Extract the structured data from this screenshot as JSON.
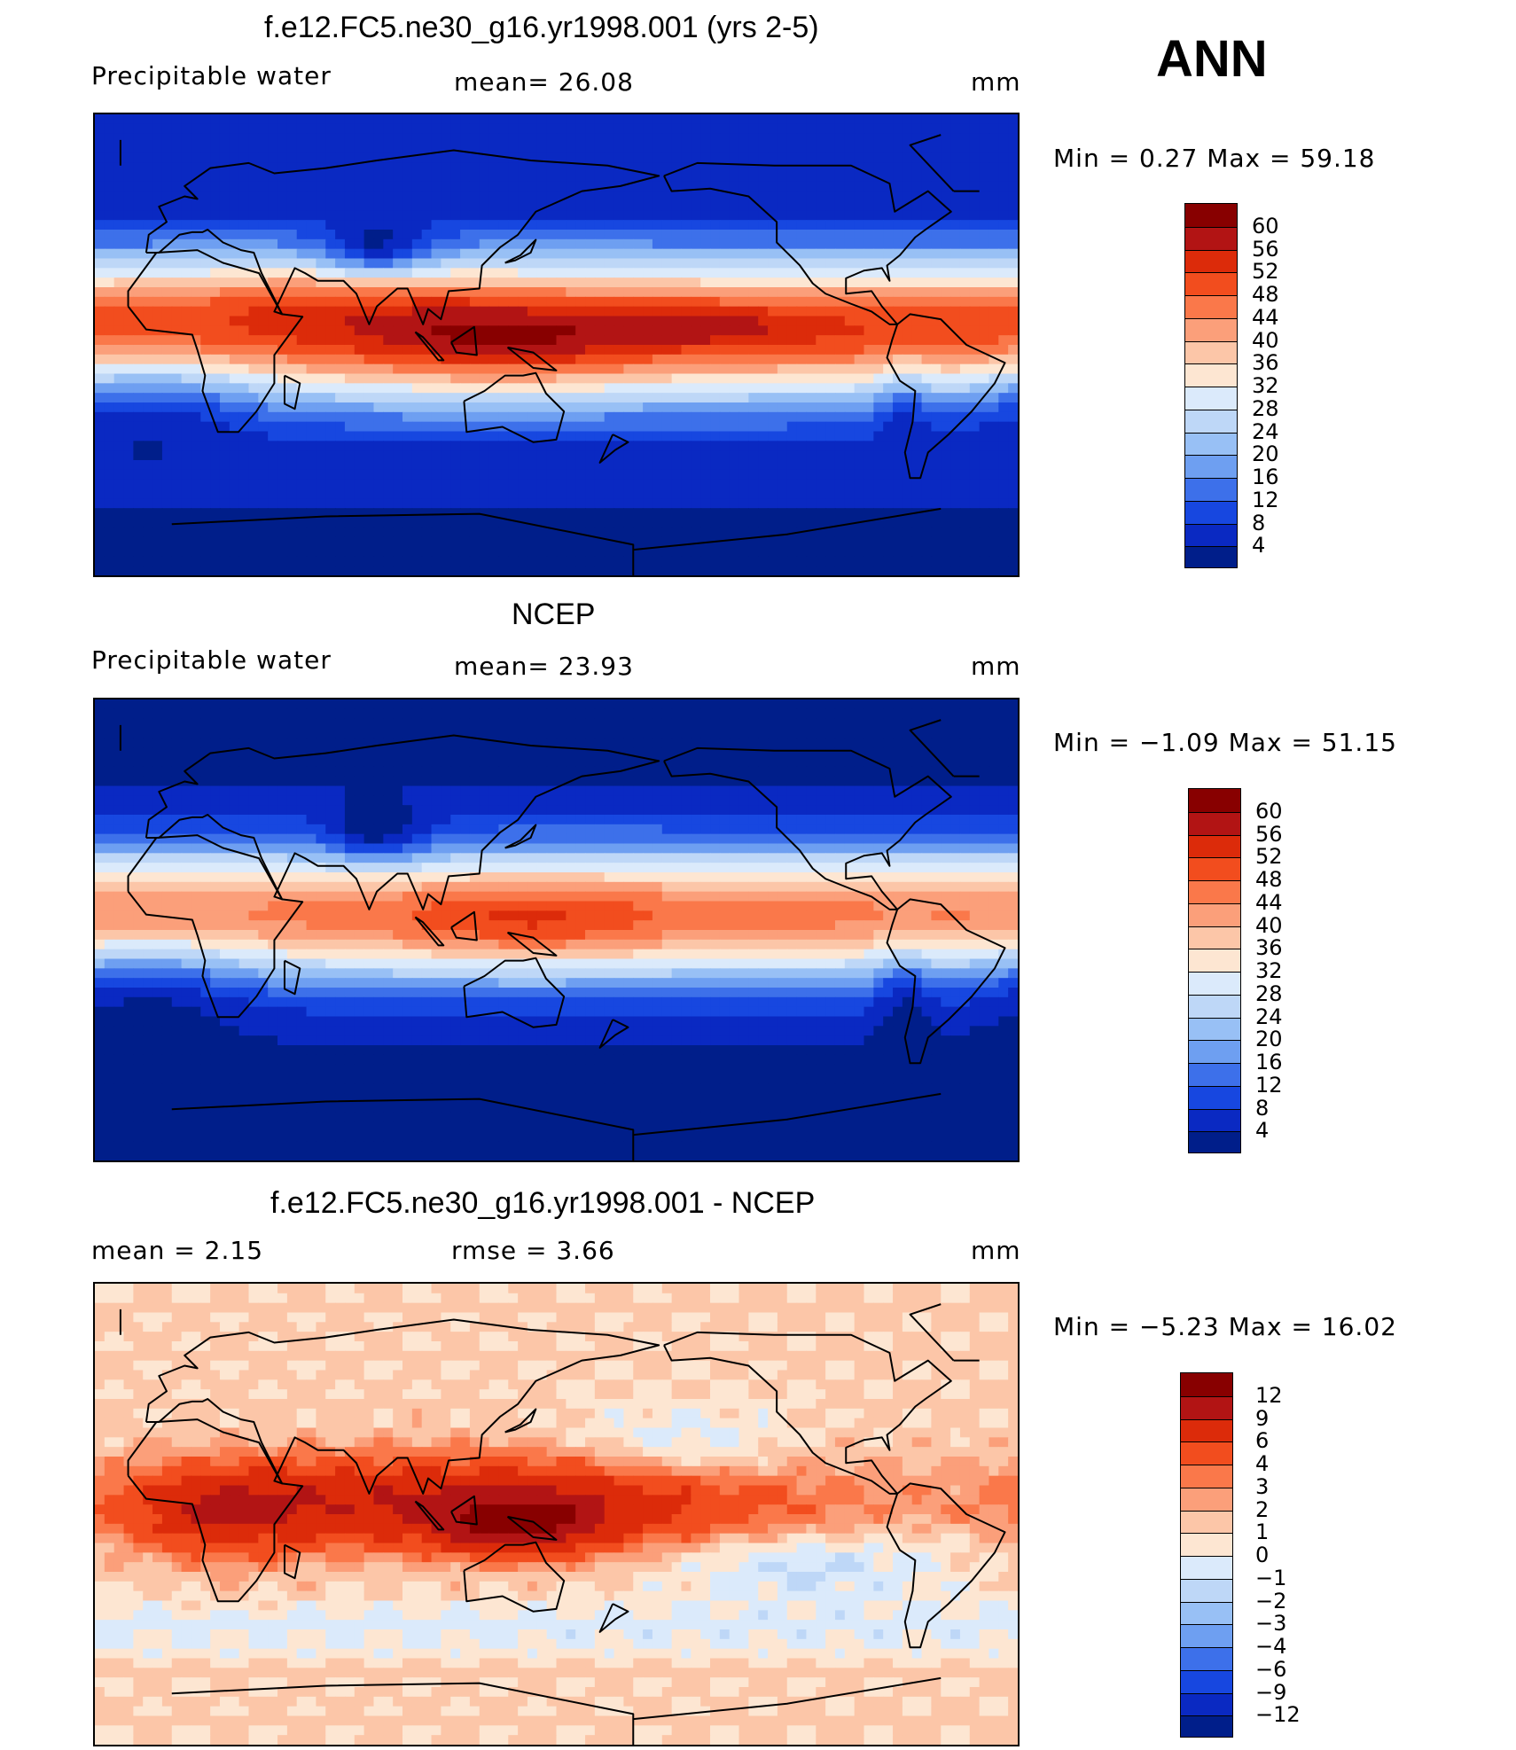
{
  "season": "ANN",
  "units_label": "mm",
  "panels": [
    {
      "title": "f.e12.FC5.ne30_g16.yr1998.001 (yrs 2-5)",
      "left_label": "Precipitable  water",
      "center_label": "mean=   26.08",
      "right_label": "mm",
      "minmax": "Min  =    0.27  Max  =    59.18",
      "colorbar_labels": [
        "60",
        "56",
        "52",
        "48",
        "44",
        "40",
        "36",
        "32",
        "28",
        "24",
        "20",
        "16",
        "12",
        "8",
        "4"
      ],
      "colorbar_colors": [
        "#880000",
        "#b21414",
        "#dc2b0a",
        "#f24d1e",
        "#fa784a",
        "#fb9f7a",
        "#fcc6a8",
        "#fde6d2",
        "#dbeafb",
        "#bed7f7",
        "#98c0f5",
        "#6e9ff1",
        "#3d70ea",
        "#1747e0",
        "#0a29c2",
        "#001e8a"
      ],
      "field": "model"
    },
    {
      "title": "NCEP",
      "left_label": "Precipitable  water",
      "center_label": "mean=   23.93",
      "right_label": "mm",
      "minmax": "Min  =   −1.09  Max  =    51.15",
      "colorbar_labels": [
        "60",
        "56",
        "52",
        "48",
        "44",
        "40",
        "36",
        "32",
        "28",
        "24",
        "20",
        "16",
        "12",
        "8",
        "4"
      ],
      "colorbar_colors": [
        "#880000",
        "#b21414",
        "#dc2b0a",
        "#f24d1e",
        "#fa784a",
        "#fb9f7a",
        "#fcc6a8",
        "#fde6d2",
        "#dbeafb",
        "#bed7f7",
        "#98c0f5",
        "#6e9ff1",
        "#3d70ea",
        "#1747e0",
        "#0a29c2",
        "#001e8a"
      ],
      "field": "obs"
    },
    {
      "title": "f.e12.FC5.ne30_g16.yr1998.001 - NCEP",
      "left_label": "mean  =      2.15",
      "center_label": "rmse  =      3.66",
      "right_label": "mm",
      "minmax": "Min  =   −5.23  Max  =    16.02",
      "colorbar_labels": [
        "12",
        "9",
        "6",
        "4",
        "3",
        "2",
        "1",
        "0",
        "−1",
        "−2",
        "−3",
        "−4",
        "−6",
        "−9",
        "−12"
      ],
      "colorbar_colors": [
        "#880000",
        "#b21414",
        "#dc2b0a",
        "#f24d1e",
        "#fa784a",
        "#fb9f7a",
        "#fcc6a8",
        "#fde6d2",
        "#dbeafb",
        "#bed7f7",
        "#98c0f5",
        "#6e9ff1",
        "#3d70ea",
        "#1747e0",
        "#0a29c2",
        "#001e8a"
      ],
      "field": "diff"
    }
  ]
}
